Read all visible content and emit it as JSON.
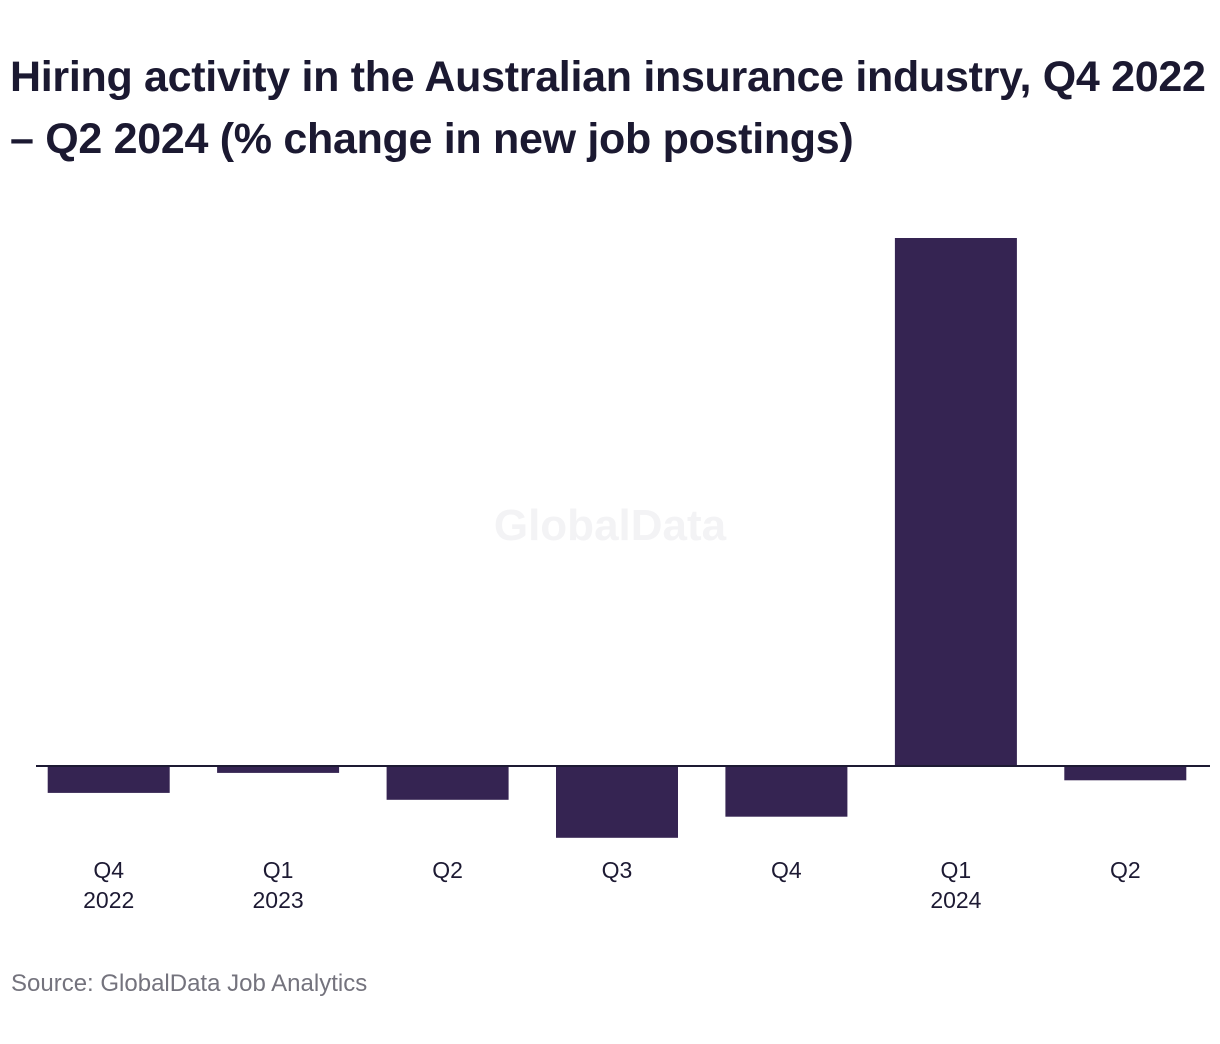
{
  "title": "Hiring activity in the Australian insurance industry, Q4 2022 – Q2 2024 (% change in new job postings)",
  "watermark": "GlobalData",
  "source": "Source: GlobalData Job Analytics",
  "colors": {
    "bar": "#352452",
    "axis": "#1d1a33",
    "text": "#1b1931",
    "source_text": "#74737d"
  },
  "chart_data": {
    "type": "bar",
    "categories": [
      "Q4 2022",
      "Q1 2023",
      "Q2 2023",
      "Q3 2023",
      "Q4 2023",
      "Q1 2024",
      "Q2 2024"
    ],
    "tick_labels": [
      {
        "line1": "Q4",
        "line2": "2022"
      },
      {
        "line1": "Q1",
        "line2": "2023"
      },
      {
        "line1": "Q2",
        "line2": ""
      },
      {
        "line1": "Q3",
        "line2": ""
      },
      {
        "line1": "Q4",
        "line2": ""
      },
      {
        "line1": "Q1",
        "line2": "2024"
      },
      {
        "line1": "Q2",
        "line2": ""
      }
    ],
    "values": [
      -5.1,
      -1.3,
      -6.4,
      -13.6,
      -9.6,
      100,
      -2.7
    ],
    "ylim": [
      -15,
      100
    ],
    "xlabel": "",
    "ylabel": "",
    "grid": false,
    "legend": "none"
  }
}
